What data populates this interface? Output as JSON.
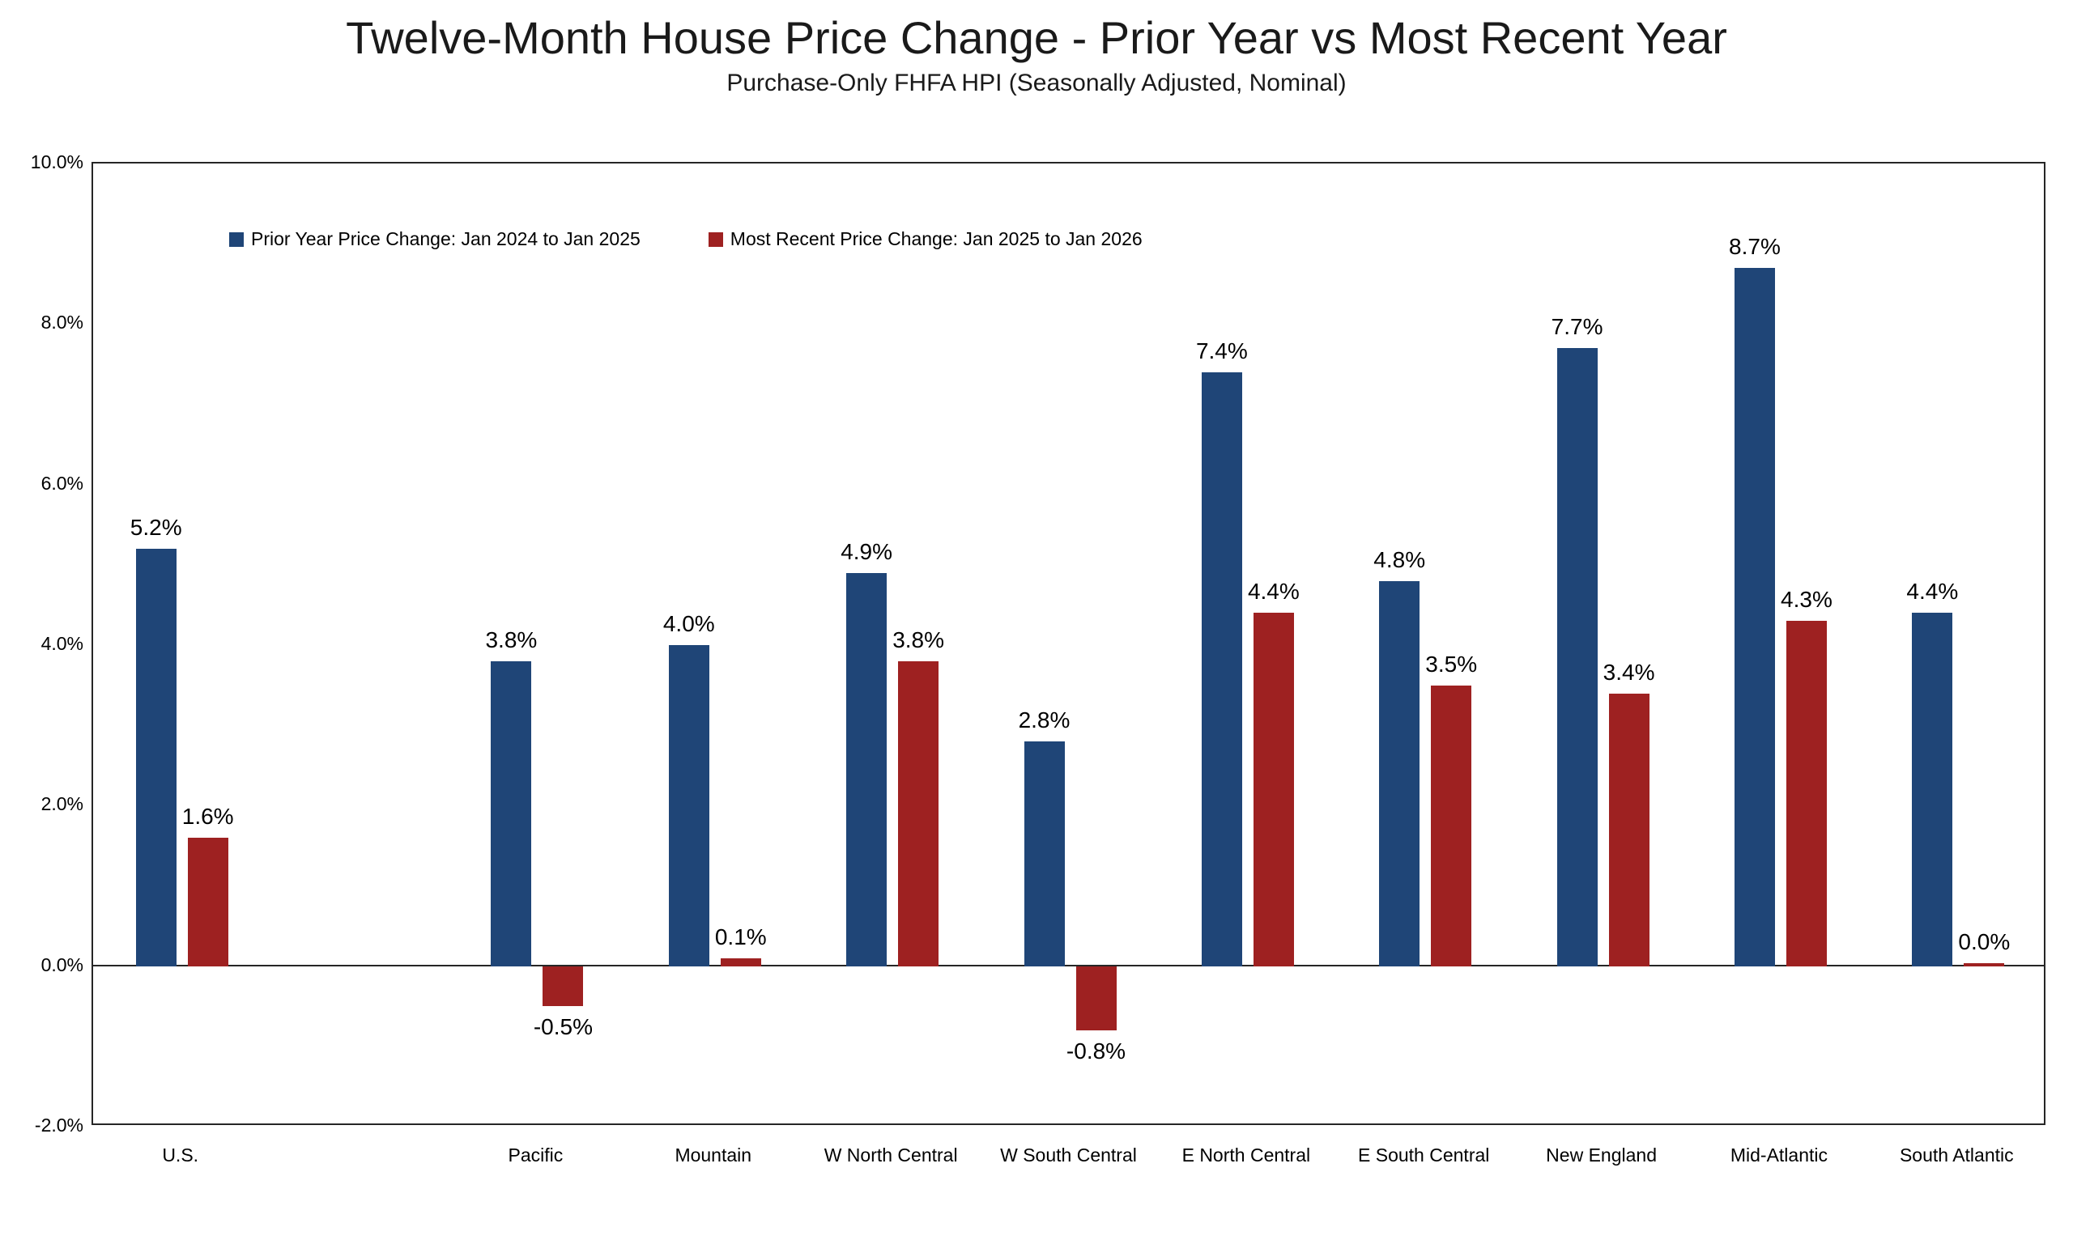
{
  "title": "Twelve-Month House Price Change - Prior Year vs Most Recent Year",
  "subtitle": "Purchase-Only FHFA HPI  (Seasonally Adjusted, Nominal)",
  "colors": {
    "prior_series": "#1F4577",
    "recent_series": "#9E2121",
    "axis": "#262626",
    "text": "#000000",
    "background": "#FFFFFF"
  },
  "chart_data": {
    "type": "bar",
    "categories": [
      "U.S.",
      "Pacific",
      "Mountain",
      "W North Central",
      "W South Central",
      "E North Central",
      "E South Central",
      "New England",
      "Mid-Atlantic",
      "South Atlantic"
    ],
    "series": [
      {
        "name": "Prior Year Price Change: Jan 2024 to Jan 2025",
        "color": "#1F4577",
        "values": [
          5.2,
          3.8,
          4.0,
          4.9,
          2.8,
          7.4,
          4.8,
          7.7,
          8.7,
          4.4
        ],
        "labels": [
          "5.2%",
          "3.8%",
          "4.0%",
          "4.9%",
          "2.8%",
          "7.4%",
          "4.8%",
          "7.7%",
          "8.7%",
          "4.4%"
        ]
      },
      {
        "name": "Most Recent Price Change: Jan 2025 to Jan 2026",
        "color": "#9E2121",
        "values": [
          1.6,
          -0.5,
          0.1,
          3.8,
          -0.8,
          4.4,
          3.5,
          3.4,
          4.3,
          0.0
        ],
        "labels": [
          "1.6%",
          "-0.5%",
          "0.1%",
          "3.8%",
          "-0.8%",
          "4.4%",
          "3.5%",
          "3.4%",
          "4.3%",
          "0.0%"
        ]
      }
    ],
    "title": "Twelve-Month House Price Change - Prior Year vs Most Recent Year",
    "subtitle": "Purchase-Only FHFA HPI  (Seasonally Adjusted, Nominal)",
    "xlabel": "",
    "ylabel": "",
    "ylim": [
      -2,
      10
    ],
    "yticks": [
      {
        "value": 10,
        "label": "10.0%"
      },
      {
        "value": 8,
        "label": "8.0%"
      },
      {
        "value": 6,
        "label": "6.0%"
      },
      {
        "value": 4,
        "label": "4.0%"
      },
      {
        "value": 2,
        "label": "2.0%"
      },
      {
        "value": 0,
        "label": "0.0%"
      },
      {
        "value": -2,
        "label": "-2.0%"
      }
    ],
    "grid": false,
    "legend_position": "inside-top-left",
    "layout": {
      "total_slots": 11,
      "slot_of_category": [
        0,
        2,
        3,
        4,
        5,
        6,
        7,
        8,
        9,
        10
      ]
    }
  }
}
